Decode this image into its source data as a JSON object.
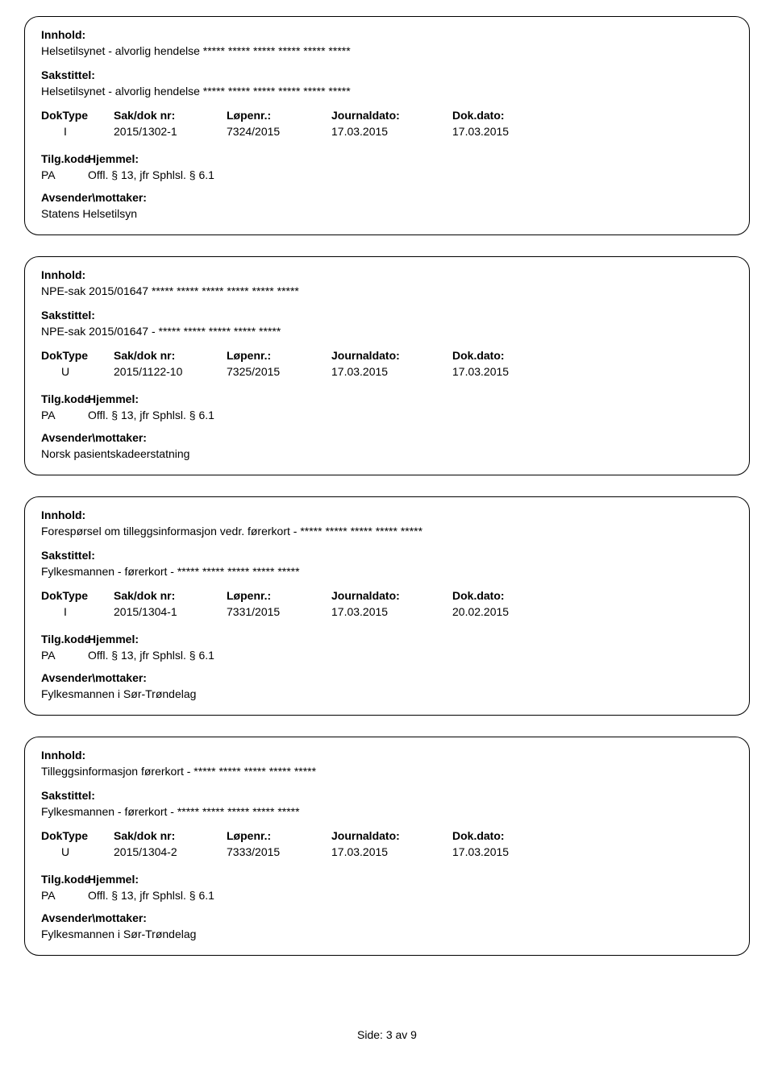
{
  "labels": {
    "innhold": "Innhold:",
    "sakstittel": "Sakstittel:",
    "doktype": "DokType",
    "sakdok": "Sak/dok nr:",
    "lopenr": "Løpenr.:",
    "journaldato": "Journaldato:",
    "dokdato": "Dok.dato:",
    "tilgkode": "Tilg.kode",
    "hjemmel": "Hjemmel:",
    "avsender": "Avsender\\mottaker:"
  },
  "entries": [
    {
      "innhold": "Helsetilsynet - alvorlig hendelse ***** ***** ***** ***** ***** *****",
      "sakstittel": "Helsetilsynet - alvorlig hendelse ***** ***** ***** ***** ***** *****",
      "doktype": "I",
      "sakdok": "2015/1302-1",
      "lopenr": "7324/2015",
      "journaldato": "17.03.2015",
      "dokdato": "17.03.2015",
      "tilgkode": "PA",
      "hjemmel": "Offl. § 13, jfr Sphlsl. § 6.1",
      "avsender": "Statens Helsetilsyn"
    },
    {
      "innhold": "NPE-sak 2015/01647 ***** ***** ***** ***** ***** *****",
      "sakstittel": "NPE-sak 2015/01647 - ***** ***** ***** ***** *****",
      "doktype": "U",
      "sakdok": "2015/1122-10",
      "lopenr": "7325/2015",
      "journaldato": "17.03.2015",
      "dokdato": "17.03.2015",
      "tilgkode": "PA",
      "hjemmel": "Offl. § 13, jfr Sphlsl. § 6.1",
      "avsender": "Norsk pasientskadeerstatning"
    },
    {
      "innhold": "Forespørsel om tilleggsinformasjon vedr. førerkort - ***** ***** ***** ***** *****",
      "sakstittel": "Fylkesmannen - førerkort - ***** ***** ***** ***** *****",
      "doktype": "I",
      "sakdok": "2015/1304-1",
      "lopenr": "7331/2015",
      "journaldato": "17.03.2015",
      "dokdato": "20.02.2015",
      "tilgkode": "PA",
      "hjemmel": "Offl. § 13, jfr Sphlsl. § 6.1",
      "avsender": "Fylkesmannen i Sør-Trøndelag"
    },
    {
      "innhold": "Tilleggsinformasjon førerkort - ***** ***** ***** ***** *****",
      "sakstittel": "Fylkesmannen - førerkort - ***** ***** ***** ***** *****",
      "doktype": "U",
      "sakdok": "2015/1304-2",
      "lopenr": "7333/2015",
      "journaldato": "17.03.2015",
      "dokdato": "17.03.2015",
      "tilgkode": "PA",
      "hjemmel": "Offl. § 13, jfr Sphlsl. § 6.1",
      "avsender": "Fylkesmannen i Sør-Trøndelag"
    }
  ],
  "footer": {
    "text": "Side: 3 av 9"
  }
}
